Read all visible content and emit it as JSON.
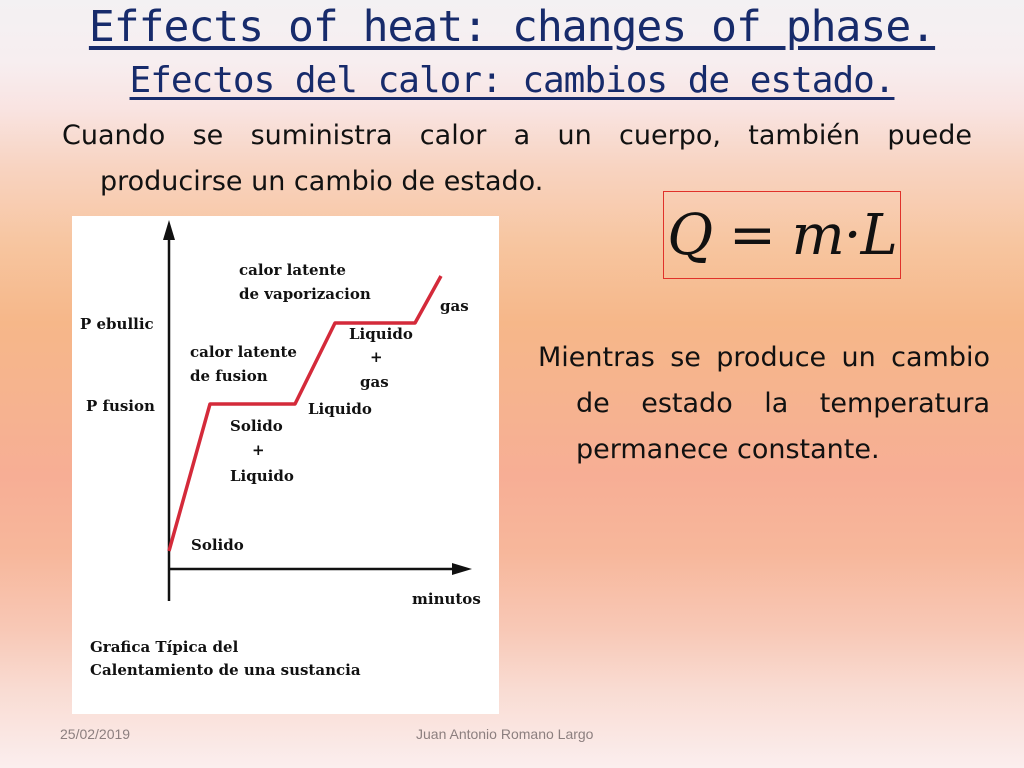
{
  "slide": {
    "title_en": "Effects of heat: changes of phase.",
    "title_es": "Efectos del calor: cambios de estado.",
    "intro": "Cuando se suministra calor a un cuerpo, también puede producirse un cambio de estado.",
    "formula": "Q = m·L",
    "note": "Mientras se produce un cambio de estado la temperatura permanece constante."
  },
  "graph": {
    "labels": {
      "p_ebullic": "P ebullic",
      "p_fusion": "P fusion",
      "minutos": "minutos",
      "latent_vap_1": "calor latente",
      "latent_vap_2": "de vaporizacion",
      "gas": "gas",
      "liq_gas_1": "Liquido",
      "liq_gas_2": "+",
      "liq_gas_3": "gas",
      "latent_fus_1": "calor latente",
      "latent_fus_2": "de fusion",
      "liquido": "Liquido",
      "sol_liq_1": "Solido",
      "sol_liq_2": "+",
      "sol_liq_3": "Liquido",
      "solido": "Solido"
    },
    "caption_1": "Grafica Típica del",
    "caption_2": "Calentamiento de una sustancia",
    "line_color": "#d42a3a"
  },
  "footer": {
    "date": "25/02/2019",
    "author": "Juan Antonio Romano Largo"
  }
}
